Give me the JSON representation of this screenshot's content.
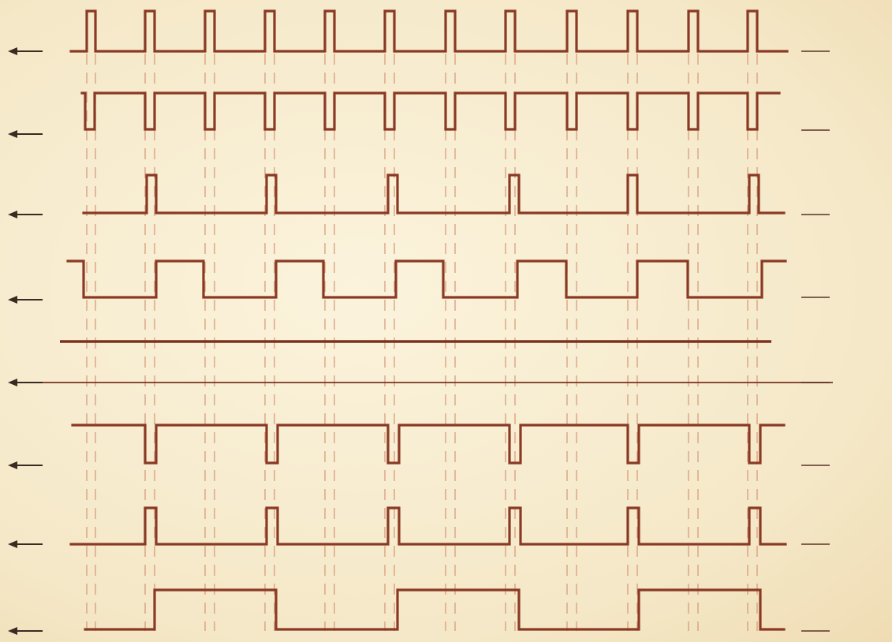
{
  "diagram": {
    "type": "timing-diagram",
    "signals": [
      {
        "label": "",
        "waveform": "clock-pulses",
        "pulses": 12,
        "pulse_polarity": "high"
      },
      {
        "label": "",
        "waveform": "inverted-pulses",
        "pulses": 12,
        "pulse_polarity": "low"
      },
      {
        "label": "",
        "waveform": "pulse-every-2",
        "pulses": 6,
        "pulse_polarity": "high"
      },
      {
        "label": "",
        "waveform": "square-wave",
        "cycles": 6
      },
      {
        "label": "",
        "waveform": "flat-line"
      },
      {
        "label": "",
        "waveform": "inverted-pulse-every-2",
        "pulses": 6,
        "pulse_polarity": "low"
      },
      {
        "label": "",
        "waveform": "pulse-every-2",
        "pulses": 6,
        "pulse_polarity": "high"
      },
      {
        "label": "",
        "waveform": "slow-square-wave",
        "cycles": 3
      }
    ],
    "colors": {
      "paper": "#f6ecd2",
      "trace": "#8a3a24",
      "guide": "#d08a6a",
      "arrow": "#3a2a22"
    }
  }
}
